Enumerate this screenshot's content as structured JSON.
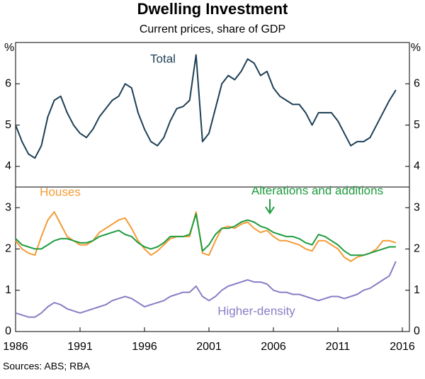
{
  "chart_data": {
    "type": "line",
    "title": "Dwelling Investment",
    "subtitle": "Current prices, share of GDP",
    "y_unit": "%",
    "source": "Sources:  ABS; RBA",
    "x": [
      1986.0,
      1986.5,
      1987.0,
      1987.5,
      1988.0,
      1988.5,
      1989.0,
      1989.5,
      1990.0,
      1990.5,
      1991.0,
      1991.5,
      1992.0,
      1992.5,
      1993.0,
      1993.5,
      1994.0,
      1994.5,
      1995.0,
      1995.5,
      1996.0,
      1996.5,
      1997.0,
      1997.5,
      1998.0,
      1998.5,
      1999.0,
      1999.5,
      2000.0,
      2000.5,
      2001.0,
      2001.5,
      2002.0,
      2002.5,
      2003.0,
      2003.5,
      2004.0,
      2004.5,
      2005.0,
      2005.5,
      2006.0,
      2006.5,
      2007.0,
      2007.5,
      2008.0,
      2008.5,
      2009.0,
      2009.5,
      2010.0,
      2010.5,
      2011.0,
      2011.5,
      2012.0,
      2012.5,
      2013.0,
      2013.5,
      2014.0,
      2014.5,
      2015.0,
      2015.5
    ],
    "series": [
      {
        "name": "Total",
        "color": "#1d3f55",
        "values": [
          5.0,
          4.6,
          4.3,
          4.2,
          4.5,
          5.2,
          5.6,
          5.7,
          5.3,
          5.0,
          4.8,
          4.7,
          4.9,
          5.2,
          5.4,
          5.6,
          5.7,
          6.0,
          5.9,
          5.3,
          4.9,
          4.6,
          4.5,
          4.7,
          5.1,
          5.4,
          5.45,
          5.6,
          6.7,
          4.6,
          4.8,
          5.4,
          6.0,
          6.2,
          6.1,
          6.3,
          6.6,
          6.5,
          6.2,
          6.3,
          5.9,
          5.7,
          5.6,
          5.5,
          5.5,
          5.3,
          5.0,
          5.3,
          5.3,
          5.3,
          5.1,
          4.8,
          4.5,
          4.6,
          4.6,
          4.7,
          5.0,
          5.3,
          5.6,
          5.85
        ]
      },
      {
        "name": "Houses",
        "color": "#f39c37",
        "values": [
          2.2,
          2.0,
          1.9,
          1.85,
          2.3,
          2.7,
          2.9,
          2.6,
          2.3,
          2.2,
          2.1,
          2.1,
          2.2,
          2.4,
          2.5,
          2.6,
          2.7,
          2.75,
          2.5,
          2.2,
          2.0,
          1.85,
          1.95,
          2.1,
          2.25,
          2.3,
          2.3,
          2.3,
          2.9,
          1.9,
          1.85,
          2.2,
          2.5,
          2.55,
          2.5,
          2.6,
          2.65,
          2.5,
          2.4,
          2.45,
          2.3,
          2.2,
          2.2,
          2.15,
          2.1,
          2.0,
          1.95,
          2.2,
          2.2,
          2.1,
          2.0,
          1.8,
          1.7,
          1.8,
          1.85,
          1.9,
          2.0,
          2.2,
          2.2,
          2.15
        ]
      },
      {
        "name": "Alterations and additions",
        "color": "#1e9c3f",
        "values": [
          2.25,
          2.1,
          2.05,
          2.0,
          2.0,
          2.1,
          2.2,
          2.25,
          2.25,
          2.2,
          2.15,
          2.15,
          2.2,
          2.3,
          2.35,
          2.4,
          2.45,
          2.35,
          2.3,
          2.15,
          2.05,
          2.0,
          2.05,
          2.15,
          2.3,
          2.3,
          2.3,
          2.35,
          2.85,
          1.95,
          2.1,
          2.35,
          2.5,
          2.5,
          2.55,
          2.65,
          2.7,
          2.65,
          2.55,
          2.5,
          2.4,
          2.35,
          2.3,
          2.3,
          2.25,
          2.15,
          2.1,
          2.35,
          2.3,
          2.2,
          2.1,
          1.95,
          1.85,
          1.85,
          1.85,
          1.9,
          1.95,
          2.0,
          2.05,
          2.05
        ]
      },
      {
        "name": "Higher-density",
        "color": "#8a7cc4",
        "values": [
          0.45,
          0.4,
          0.35,
          0.35,
          0.45,
          0.6,
          0.7,
          0.65,
          0.55,
          0.5,
          0.45,
          0.5,
          0.55,
          0.6,
          0.65,
          0.75,
          0.8,
          0.85,
          0.8,
          0.7,
          0.6,
          0.65,
          0.7,
          0.75,
          0.85,
          0.9,
          0.95,
          0.95,
          1.1,
          0.85,
          0.75,
          0.85,
          1.0,
          1.1,
          1.15,
          1.2,
          1.25,
          1.2,
          1.2,
          1.15,
          1.0,
          0.95,
          0.95,
          0.9,
          0.9,
          0.85,
          0.8,
          0.75,
          0.8,
          0.85,
          0.85,
          0.8,
          0.85,
          0.9,
          1.0,
          1.05,
          1.15,
          1.25,
          1.35,
          1.7
        ]
      }
    ],
    "xlim": [
      1986,
      2016.55
    ],
    "xticks": [
      1986,
      1991,
      1996,
      2001,
      2006,
      2011,
      2016
    ],
    "ylim": [
      0,
      7
    ],
    "yticks": [
      0,
      1,
      2,
      3,
      4,
      5,
      6
    ]
  }
}
